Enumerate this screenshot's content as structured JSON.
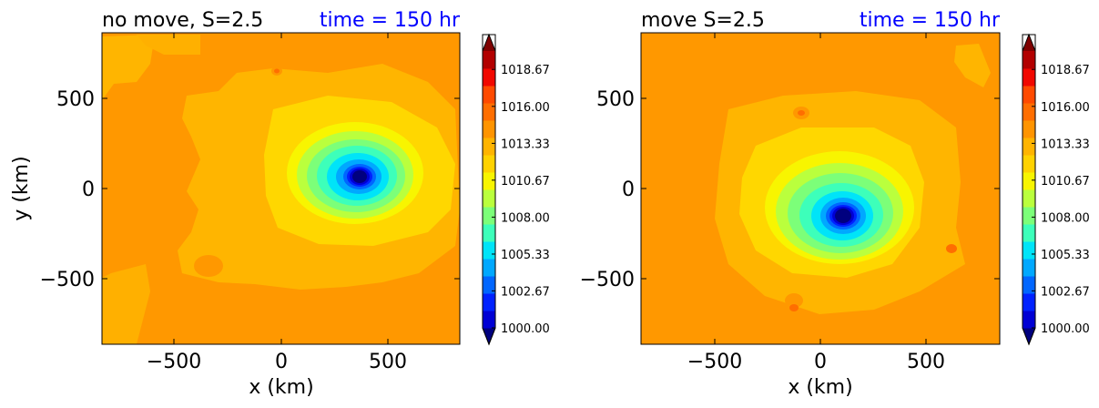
{
  "chart_data": [
    {
      "type": "contour",
      "title_left": "no move, S=2.5",
      "title_right": "time = 150 hr",
      "xlabel": "x (km)",
      "ylabel": "y (km)",
      "xlim": [
        -850,
        850
      ],
      "ylim": [
        -850,
        850
      ],
      "xticks": [
        -500,
        0,
        500
      ],
      "yticks": [
        -500,
        0,
        500
      ],
      "xtick_labels": [
        "−500",
        "0",
        "500"
      ],
      "ytick_labels": [
        "−500",
        "0",
        "500"
      ],
      "pressure_minimum_center_km": [
        370,
        70
      ]
    },
    {
      "type": "contour",
      "title_left": "move S=2.5",
      "title_right": "time = 150 hr",
      "xlabel": "x (km)",
      "ylabel": "",
      "xlim": [
        -850,
        850
      ],
      "ylim": [
        -850,
        850
      ],
      "xticks": [
        -500,
        0,
        500
      ],
      "yticks": [
        -500,
        0,
        500
      ],
      "xtick_labels": [
        "−500",
        "0",
        "500"
      ],
      "ytick_labels": [
        "−500",
        "0",
        "500"
      ],
      "pressure_minimum_center_km": [
        120,
        -150
      ]
    }
  ],
  "colorbar": {
    "range": [
      1000,
      1020
    ],
    "tick_labels": [
      "1018.67",
      "1016.00",
      "1013.33",
      "1010.67",
      "1008.00",
      "1005.33",
      "1002.67",
      "1000.00"
    ],
    "tick_values": [
      1018.67,
      1016.0,
      1013.33,
      1010.67,
      1008.0,
      1005.33,
      1002.67,
      1000.0
    ],
    "colors": [
      "#00007f",
      "#0000d4",
      "#0022ff",
      "#0066ff",
      "#00a8ff",
      "#00e4f8",
      "#3dffba",
      "#7cff79",
      "#baff3d",
      "#f8f500",
      "#ffd200",
      "#ffb400",
      "#ff9400",
      "#ff6e00",
      "#ff4a00",
      "#f10800",
      "#b20000",
      "#7f0000"
    ]
  },
  "colors": {
    "background_field": "#ff9800",
    "mid_field": "#ffb500",
    "inner_ring": "#ffd700",
    "title_right": "#0000ff"
  }
}
